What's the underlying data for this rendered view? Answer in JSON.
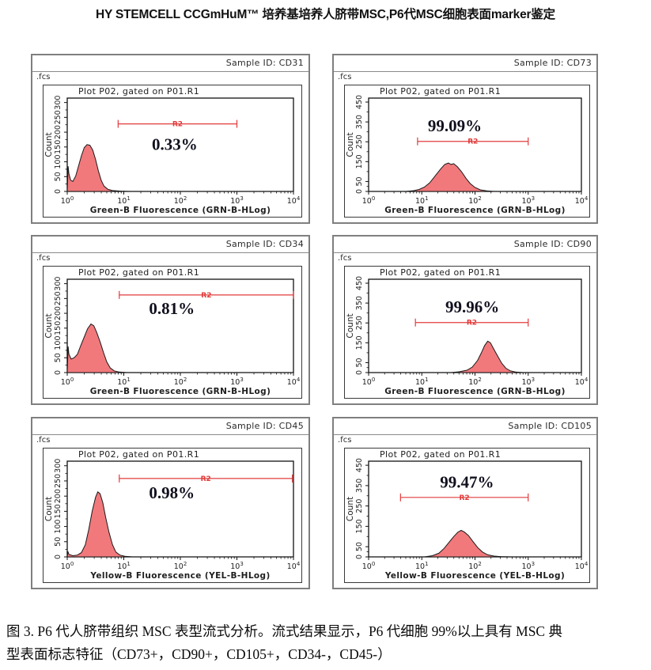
{
  "page_title": "HY STEMCELL CCGmHuM™ 培养基培养人脐带MSC,P6代MSC细胞表面marker鉴定",
  "caption": {
    "line1": "图 3. P6 代人脐带组织 MSC 表型流式分析。流式结果显示，P6 代细胞 99%以上具有 MSC 典",
    "line2": "型表面标志特征（CD73+，CD90+，CD105+，CD34-，CD45-）"
  },
  "colors": {
    "histogram_fill": "#f1797c",
    "histogram_stroke": "#1a1a1a",
    "gate_red": "#e23b3b",
    "axis_color": "#111111",
    "text_color": "#1e1e1e",
    "percent_color": "#10101e"
  },
  "chart_data": [
    {
      "type": "area",
      "sample_id_label": "Sample ID: CD31",
      "file_label": ".fcs",
      "plot_title": "Plot P02, gated on P01.R1",
      "xlabel": "Green-B Fluorescence (GRN-B-HLog)",
      "ylabel": "Count",
      "percent_label": "0.33%",
      "x_scale": "log10",
      "x_ticks": [
        "10^0",
        "10^1",
        "10^2",
        "10^3",
        "10^4"
      ],
      "y_ticks_major": [
        0,
        50,
        100,
        150,
        200,
        250,
        300
      ],
      "y_ticks_minor": [
        25,
        75,
        125,
        175,
        225,
        275
      ],
      "y_axis_max": 315,
      "gate": {
        "label": "R2",
        "x0": 0.9,
        "x1": 3.0,
        "y": 228
      },
      "percent_pos": [
        1.9,
        140
      ],
      "curve_points": [
        [
          0,
          0
        ],
        [
          0.015,
          85
        ],
        [
          0.03,
          60
        ],
        [
          0.06,
          38
        ],
        [
          0.1,
          34
        ],
        [
          0.15,
          52
        ],
        [
          0.2,
          86
        ],
        [
          0.25,
          120
        ],
        [
          0.3,
          148
        ],
        [
          0.35,
          158
        ],
        [
          0.4,
          156
        ],
        [
          0.45,
          140
        ],
        [
          0.5,
          108
        ],
        [
          0.55,
          70
        ],
        [
          0.6,
          38
        ],
        [
          0.65,
          18
        ],
        [
          0.72,
          7
        ],
        [
          0.8,
          3
        ],
        [
          0.95,
          1
        ],
        [
          1.1,
          0
        ],
        [
          4,
          0
        ]
      ]
    },
    {
      "type": "area",
      "sample_id_label": "Sample ID: CD73",
      "file_label": ".fcs",
      "plot_title": "Plot P02, gated on P01.R1",
      "xlabel": "Green-B Fluorescence (GRN-B-HLog)",
      "ylabel": "Count",
      "percent_label": "99.09%",
      "x_scale": "log10",
      "x_ticks": [
        "10^0",
        "10^1",
        "10^2",
        "10^3",
        "10^4"
      ],
      "y_ticks_major": [
        0,
        50,
        150,
        250,
        350,
        450
      ],
      "y_ticks_minor": [
        25,
        100,
        200,
        300,
        400
      ],
      "y_axis_max": 470,
      "gate": {
        "label": "R2",
        "x0": 0.92,
        "x1": 3.0,
        "y": 252
      },
      "percent_pos": [
        1.62,
        302
      ],
      "curve_points": [
        [
          0,
          0
        ],
        [
          0.7,
          0
        ],
        [
          0.85,
          4
        ],
        [
          0.95,
          10
        ],
        [
          1.05,
          22
        ],
        [
          1.15,
          44
        ],
        [
          1.25,
          78
        ],
        [
          1.35,
          112
        ],
        [
          1.43,
          136
        ],
        [
          1.5,
          143
        ],
        [
          1.55,
          136
        ],
        [
          1.6,
          140
        ],
        [
          1.67,
          124
        ],
        [
          1.75,
          98
        ],
        [
          1.83,
          66
        ],
        [
          1.91,
          40
        ],
        [
          2.0,
          20
        ],
        [
          2.1,
          8
        ],
        [
          2.22,
          3
        ],
        [
          2.35,
          0
        ],
        [
          4,
          0
        ]
      ]
    },
    {
      "type": "area",
      "sample_id_label": "Sample ID: CD34",
      "file_label": ".fcs",
      "plot_title": "Plot P02, gated on P01.R1",
      "xlabel": "Green-B Fluorescence (GRN-B-HLog)",
      "ylabel": "Count",
      "percent_label": "0.81%",
      "x_scale": "log10",
      "x_ticks": [
        "10^0",
        "10^1",
        "10^2",
        "10^3",
        "10^4"
      ],
      "y_ticks_major": [
        0,
        50,
        100,
        150,
        200,
        250,
        300
      ],
      "y_ticks_minor": [
        25,
        75,
        125,
        175,
        225,
        275
      ],
      "y_axis_max": 315,
      "gate": {
        "label": "R2",
        "x0": 0.92,
        "x1": 4.0,
        "y": 262
      },
      "percent_pos": [
        1.85,
        198
      ],
      "curve_points": [
        [
          0,
          0
        ],
        [
          0.015,
          88
        ],
        [
          0.03,
          62
        ],
        [
          0.07,
          46
        ],
        [
          0.12,
          50
        ],
        [
          0.18,
          62
        ],
        [
          0.24,
          92
        ],
        [
          0.3,
          120
        ],
        [
          0.36,
          148
        ],
        [
          0.42,
          164
        ],
        [
          0.47,
          158
        ],
        [
          0.52,
          136
        ],
        [
          0.58,
          104
        ],
        [
          0.64,
          68
        ],
        [
          0.7,
          36
        ],
        [
          0.76,
          16
        ],
        [
          0.83,
          6
        ],
        [
          0.92,
          2
        ],
        [
          1.05,
          0
        ],
        [
          4,
          0
        ]
      ]
    },
    {
      "type": "area",
      "sample_id_label": "Sample ID: CD90",
      "file_label": ".fcs",
      "plot_title": "Plot P02, gated on P01.R1",
      "xlabel": "Green-B Fluorescence (GRN-B-HLog)",
      "ylabel": "Count",
      "percent_label": "99.96%",
      "x_scale": "log10",
      "x_ticks": [
        "10^0",
        "10^1",
        "10^2",
        "10^3",
        "10^4"
      ],
      "y_ticks_major": [
        0,
        50,
        150,
        250,
        350,
        450
      ],
      "y_ticks_minor": [
        25,
        100,
        200,
        300,
        400
      ],
      "y_axis_max": 470,
      "gate": {
        "label": "R2",
        "x0": 0.88,
        "x1": 3.0,
        "y": 252
      },
      "percent_pos": [
        1.95,
        302
      ],
      "curve_points": [
        [
          0,
          0
        ],
        [
          1.55,
          0
        ],
        [
          1.7,
          4
        ],
        [
          1.85,
          12
        ],
        [
          1.95,
          28
        ],
        [
          2.05,
          62
        ],
        [
          2.12,
          100
        ],
        [
          2.18,
          136
        ],
        [
          2.24,
          158
        ],
        [
          2.29,
          150
        ],
        [
          2.35,
          120
        ],
        [
          2.42,
          86
        ],
        [
          2.5,
          48
        ],
        [
          2.58,
          22
        ],
        [
          2.66,
          9
        ],
        [
          2.76,
          3
        ],
        [
          2.9,
          0
        ],
        [
          4,
          0
        ]
      ]
    },
    {
      "type": "area",
      "sample_id_label": "Sample ID: CD45",
      "file_label": ".fcs",
      "plot_title": "Plot P02, gated on P01.R1",
      "xlabel": "Yellow-B Fluorescence (YEL-B-HLog)",
      "ylabel": "Count",
      "percent_label": "0.98%",
      "x_scale": "log10",
      "x_ticks": [
        "10^0",
        "10^1",
        "10^2",
        "10^3",
        "10^4"
      ],
      "y_ticks_major": [
        0,
        50,
        100,
        150,
        200,
        250,
        300
      ],
      "y_ticks_minor": [
        25,
        75,
        125,
        175,
        225,
        275
      ],
      "y_axis_max": 315,
      "gate": {
        "label": "R2",
        "x0": 0.92,
        "x1": 3.98,
        "y": 258
      },
      "percent_pos": [
        1.85,
        192
      ],
      "curve_points": [
        [
          0,
          0
        ],
        [
          0.012,
          18
        ],
        [
          0.03,
          8
        ],
        [
          0.1,
          4
        ],
        [
          0.18,
          6
        ],
        [
          0.25,
          14
        ],
        [
          0.32,
          40
        ],
        [
          0.38,
          90
        ],
        [
          0.44,
          150
        ],
        [
          0.5,
          196
        ],
        [
          0.54,
          214
        ],
        [
          0.58,
          208
        ],
        [
          0.63,
          178
        ],
        [
          0.68,
          130
        ],
        [
          0.74,
          80
        ],
        [
          0.8,
          40
        ],
        [
          0.86,
          16
        ],
        [
          0.93,
          6
        ],
        [
          1.02,
          2
        ],
        [
          1.15,
          0
        ],
        [
          4,
          0
        ]
      ]
    },
    {
      "type": "area",
      "sample_id_label": "Sample ID: CD105",
      "file_label": ".fcs",
      "plot_title": "Plot P02, gated on P01.R1",
      "xlabel": "Yellow-B Fluorescence (YEL-B-HLog)",
      "ylabel": "Count",
      "percent_label": "99.47%",
      "x_scale": "log10",
      "x_ticks": [
        "10^0",
        "10^1",
        "10^2",
        "10^3",
        "10^4"
      ],
      "y_ticks_major": [
        0,
        50,
        150,
        250,
        350,
        450
      ],
      "y_ticks_minor": [
        25,
        100,
        200,
        300,
        400
      ],
      "y_axis_max": 470,
      "gate": {
        "label": "R2",
        "x0": 0.6,
        "x1": 3.0,
        "y": 292
      },
      "percent_pos": [
        1.85,
        340
      ],
      "curve_points": [
        [
          0,
          0
        ],
        [
          1.05,
          0
        ],
        [
          1.2,
          6
        ],
        [
          1.32,
          18
        ],
        [
          1.42,
          42
        ],
        [
          1.52,
          74
        ],
        [
          1.6,
          100
        ],
        [
          1.68,
          122
        ],
        [
          1.74,
          130
        ],
        [
          1.8,
          122
        ],
        [
          1.88,
          104
        ],
        [
          1.96,
          76
        ],
        [
          2.05,
          46
        ],
        [
          2.14,
          24
        ],
        [
          2.24,
          10
        ],
        [
          2.36,
          4
        ],
        [
          2.5,
          1
        ],
        [
          2.7,
          0
        ],
        [
          4,
          0
        ]
      ]
    }
  ]
}
